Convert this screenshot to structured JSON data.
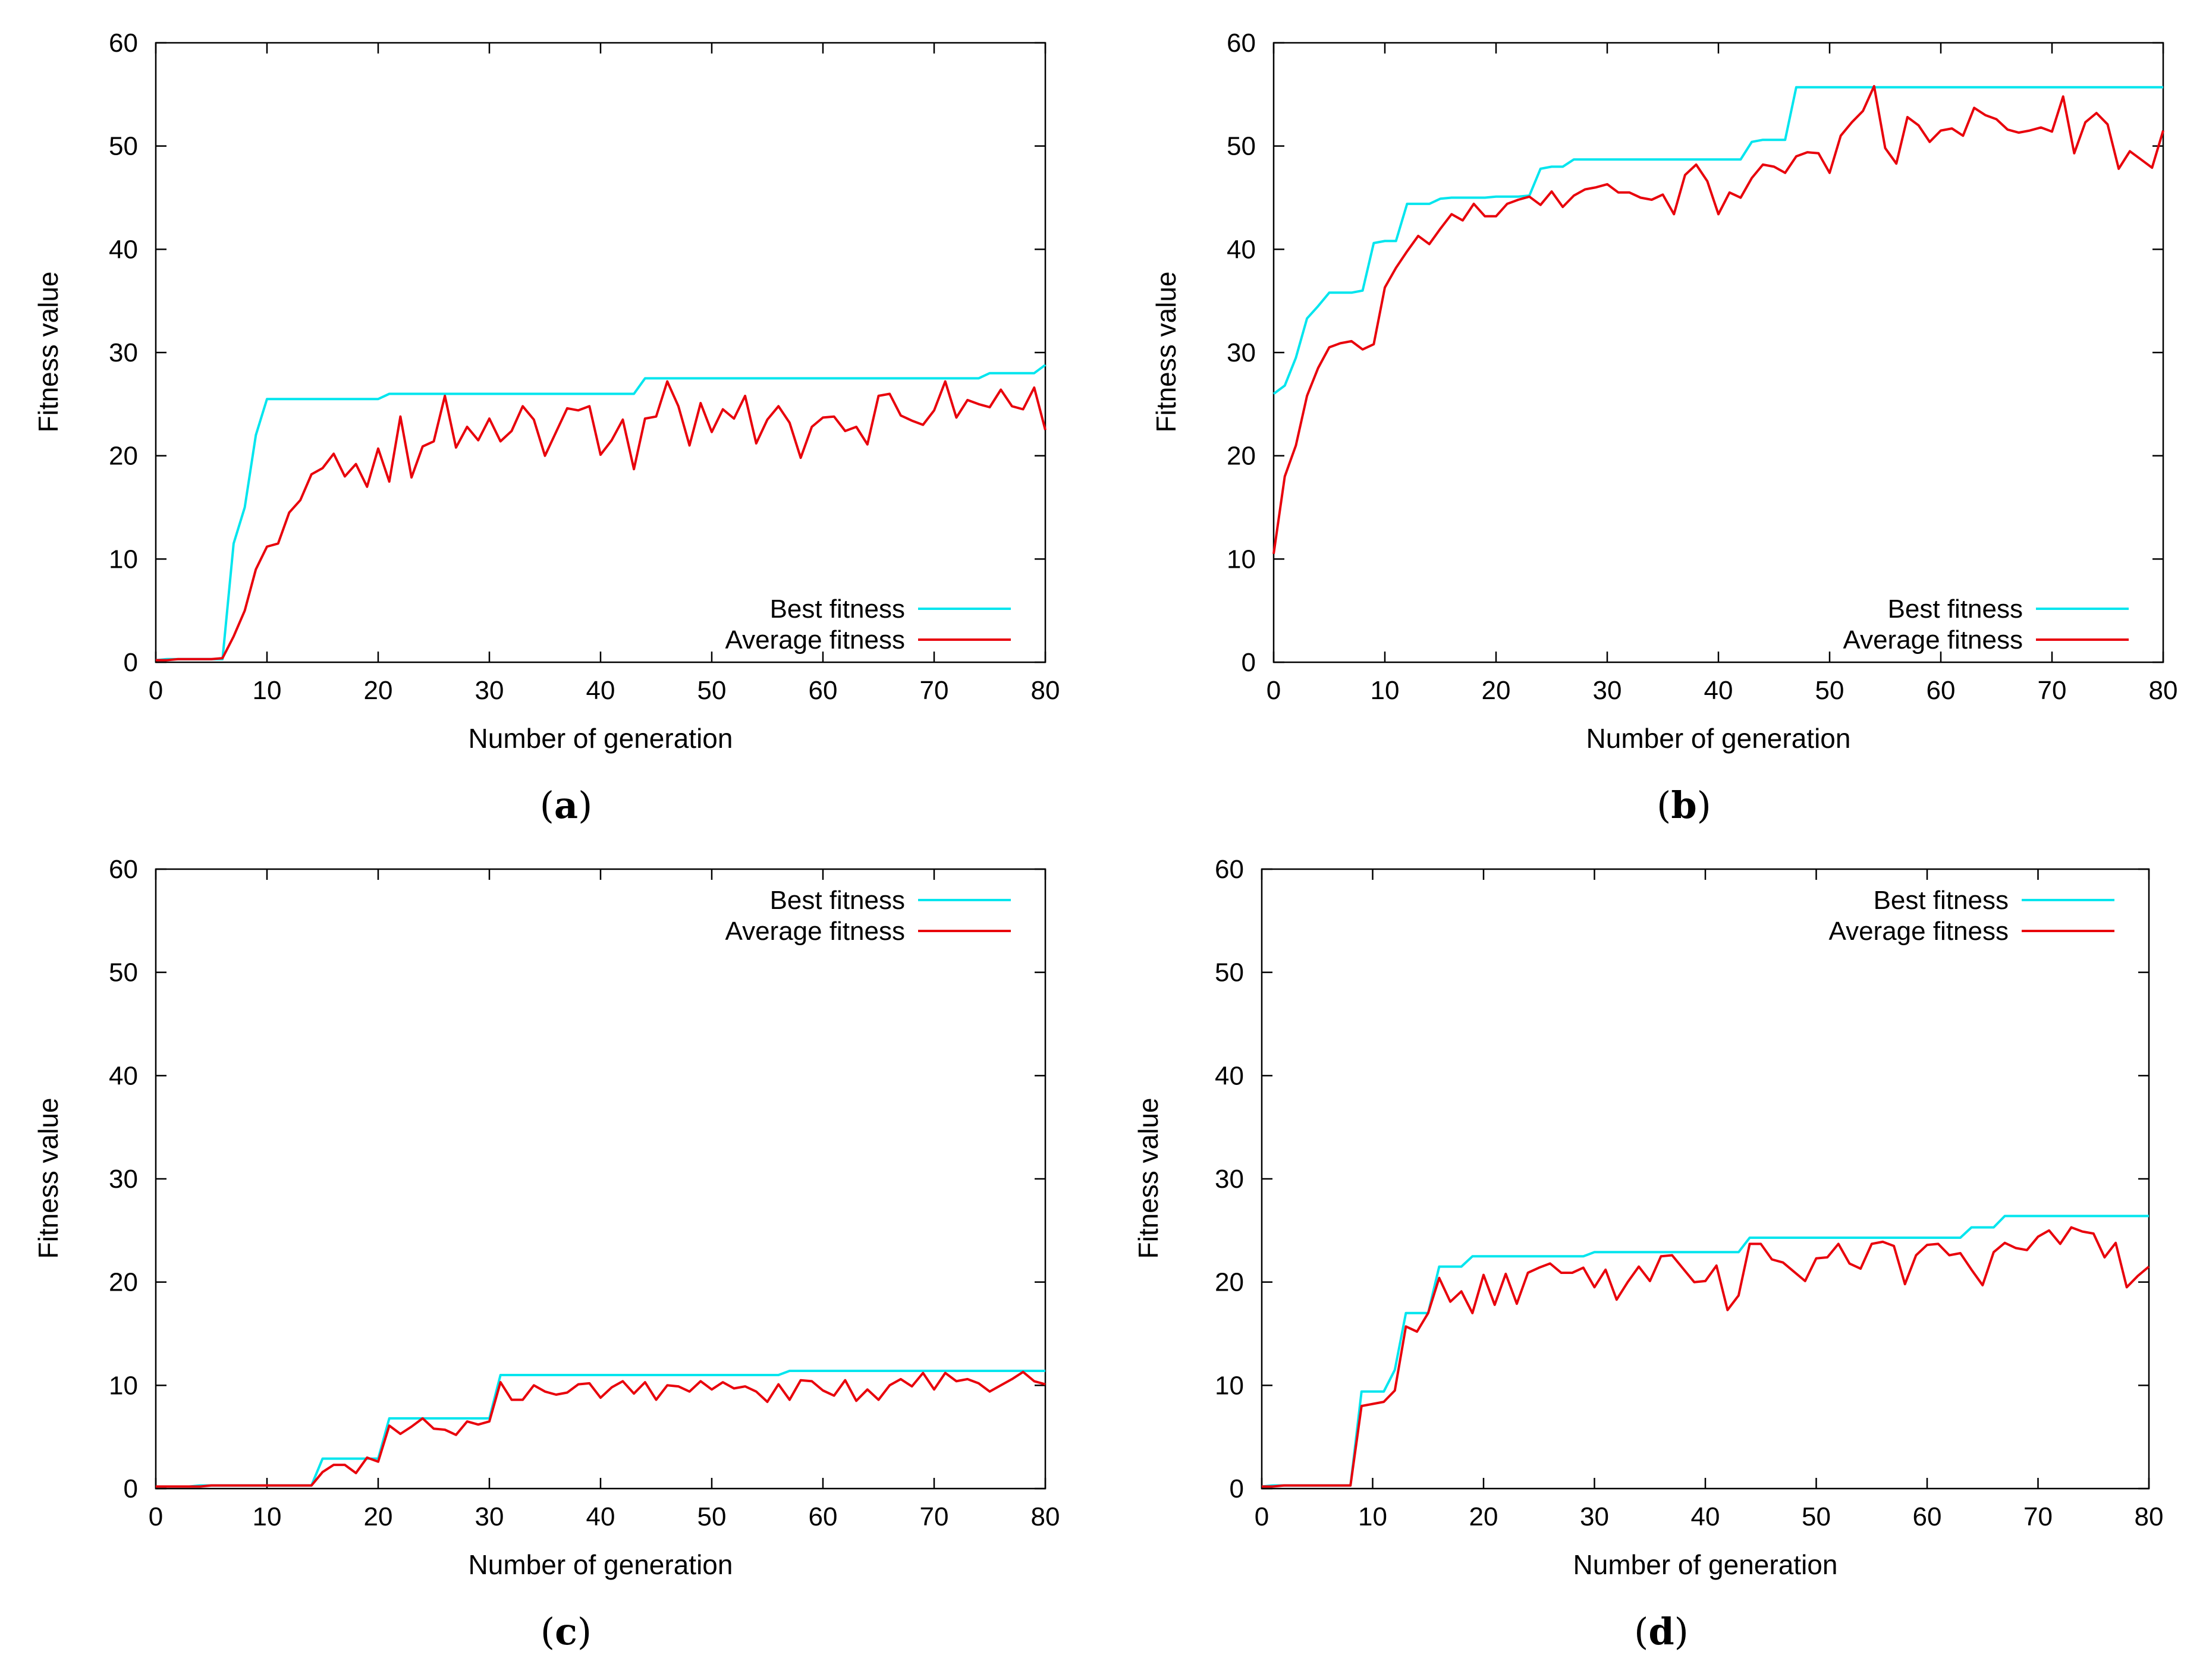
{
  "figure": {
    "panels": [
      {
        "key": "a",
        "label": "(a)",
        "letter": "a"
      },
      {
        "key": "b",
        "label": "(b)",
        "letter": "b"
      },
      {
        "key": "c",
        "label": "(c)",
        "letter": "c"
      },
      {
        "key": "d",
        "label": "(d)",
        "letter": "d"
      }
    ]
  },
  "chart_data": [
    {
      "type": "line",
      "panel": "a",
      "caption": "(a)",
      "title": "",
      "xlabel": "Number of generation",
      "ylabel": "Fitness value",
      "xlim": [
        0,
        80
      ],
      "ylim": [
        0,
        60
      ],
      "xticks": [
        0,
        10,
        20,
        30,
        40,
        50,
        60,
        70,
        80
      ],
      "yticks": [
        0,
        10,
        20,
        30,
        40,
        50,
        60
      ],
      "legend_position": "bottom-right",
      "colors": {
        "best": "#00e5ee",
        "average": "#e8000b"
      },
      "series": [
        {
          "name": "Best fitness",
          "values": [
            0.2,
            0.3,
            0.3,
            0.3,
            0.3,
            0.3,
            0.3,
            11.5,
            15,
            22,
            25.5,
            25.5,
            25.5,
            25.5,
            25.5,
            25.5,
            25.5,
            25.5,
            25.5,
            25.5,
            25.5,
            26,
            26,
            26,
            26,
            26,
            26,
            26,
            26,
            26,
            26,
            26,
            26,
            26,
            26,
            26,
            26,
            26,
            26,
            26,
            26,
            26,
            26,
            26,
            27.5,
            27.5,
            27.5,
            27.5,
            27.5,
            27.5,
            27.5,
            27.5,
            27.5,
            27.5,
            27.5,
            27.5,
            27.5,
            27.5,
            27.5,
            27.5,
            27.5,
            27.5,
            27.5,
            27.5,
            27.5,
            27.5,
            27.5,
            27.5,
            27.5,
            27.5,
            27.5,
            27.5,
            27.5,
            27.5,
            27.5,
            28,
            28,
            28,
            28,
            28,
            28.8
          ]
        },
        {
          "name": "Average fitness",
          "values": [
            0.2,
            0.2,
            0.3,
            0.3,
            0.3,
            0.3,
            0.4,
            2.5,
            5,
            9,
            11.2,
            11.5,
            14.5,
            15.7,
            18.2,
            18.8,
            20.2,
            18,
            19.2,
            17,
            20.7,
            17.5,
            23.8,
            17.9,
            20.9,
            21.4,
            25.8,
            20.8,
            22.8,
            21.5,
            23.6,
            21.4,
            22.4,
            24.8,
            23.5,
            20,
            22.3,
            24.6,
            24.4,
            24.8,
            20.1,
            21.5,
            23.5,
            18.7,
            23.6,
            23.8,
            27.2,
            24.8,
            21,
            25.1,
            22.3,
            24.5,
            23.6,
            25.8,
            21.2,
            23.5,
            24.8,
            23.2,
            19.8,
            22.8,
            23.7,
            23.8,
            22.4,
            22.8,
            21.1,
            25.8,
            26,
            23.9,
            23.4,
            23,
            24.4,
            27.2,
            23.7,
            25.4,
            25,
            24.7,
            26.4,
            24.8,
            24.5,
            26.6,
            22.5
          ]
        }
      ]
    },
    {
      "type": "line",
      "panel": "b",
      "caption": "(b)",
      "title": "",
      "xlabel": "Number of generation",
      "ylabel": "Fitness value",
      "xlim": [
        0,
        80
      ],
      "ylim": [
        0,
        60
      ],
      "xticks": [
        0,
        10,
        20,
        30,
        40,
        50,
        60,
        70,
        80
      ],
      "yticks": [
        0,
        10,
        20,
        30,
        40,
        50,
        60
      ],
      "legend_position": "bottom-right",
      "colors": {
        "best": "#00e5ee",
        "average": "#e8000b"
      },
      "series": [
        {
          "name": "Best fitness",
          "values": [
            26,
            26.8,
            29.5,
            33.3,
            34.5,
            35.8,
            35.8,
            35.8,
            36,
            40.6,
            40.8,
            40.8,
            44.4,
            44.4,
            44.4,
            44.9,
            45,
            45,
            45,
            45,
            45.1,
            45.1,
            45.1,
            45.2,
            47.8,
            48,
            48,
            48.7,
            48.7,
            48.7,
            48.7,
            48.7,
            48.7,
            48.7,
            48.7,
            48.7,
            48.7,
            48.7,
            48.7,
            48.7,
            48.7,
            48.7,
            48.7,
            50.4,
            50.6,
            50.6,
            50.6,
            55.7,
            55.7,
            55.7,
            55.7,
            55.7,
            55.7,
            55.7,
            55.7,
            55.7,
            55.7,
            55.7,
            55.7,
            55.7,
            55.7,
            55.7,
            55.7,
            55.7,
            55.7,
            55.7,
            55.7,
            55.7,
            55.7,
            55.7,
            55.7,
            55.7,
            55.7,
            55.7,
            55.7,
            55.7,
            55.7,
            55.7,
            55.7,
            55.7,
            55.7
          ]
        },
        {
          "name": "Average fitness",
          "values": [
            10.5,
            18,
            21,
            25.8,
            28.5,
            30.5,
            30.9,
            31.1,
            30.3,
            30.8,
            36.3,
            38.2,
            39.8,
            41.3,
            40.5,
            42,
            43.4,
            42.8,
            44.4,
            43.2,
            43.2,
            44.4,
            44.8,
            45.1,
            44.3,
            45.6,
            44.1,
            45.2,
            45.8,
            46,
            46.3,
            45.5,
            45.5,
            45,
            44.8,
            45.3,
            43.4,
            47.2,
            48.2,
            46.6,
            43.4,
            45.5,
            45,
            46.9,
            48.2,
            48,
            47.4,
            49,
            49.4,
            49.3,
            47.4,
            51,
            52.3,
            53.4,
            55.8,
            49.8,
            48.3,
            52.8,
            52,
            50.4,
            51.5,
            51.7,
            51,
            53.7,
            53,
            52.6,
            51.6,
            51.3,
            51.5,
            51.8,
            51.4,
            54.8,
            49.3,
            52.3,
            53.2,
            52.1,
            47.8,
            49.5,
            48.7,
            47.9,
            51.5
          ]
        }
      ]
    },
    {
      "type": "line",
      "panel": "c",
      "caption": "(c)",
      "title": "",
      "xlabel": "Number of generation",
      "ylabel": "Fitness value",
      "xlim": [
        0,
        80
      ],
      "ylim": [
        0,
        60
      ],
      "xticks": [
        0,
        10,
        20,
        30,
        40,
        50,
        60,
        70,
        80
      ],
      "yticks": [
        0,
        10,
        20,
        30,
        40,
        50,
        60
      ],
      "legend_position": "top-right",
      "colors": {
        "best": "#00e5ee",
        "average": "#e8000b"
      },
      "series": [
        {
          "name": "Best fitness",
          "values": [
            0.2,
            0.2,
            0.2,
            0.2,
            0.3,
            0.3,
            0.3,
            0.3,
            0.3,
            0.3,
            0.3,
            0.3,
            0.3,
            0.3,
            0.3,
            2.9,
            2.9,
            2.9,
            2.9,
            2.9,
            2.9,
            6.8,
            6.8,
            6.8,
            6.8,
            6.8,
            6.8,
            6.8,
            6.8,
            6.8,
            6.8,
            11,
            11,
            11,
            11,
            11,
            11,
            11,
            11,
            11,
            11,
            11,
            11,
            11,
            11,
            11,
            11,
            11,
            11,
            11,
            11,
            11,
            11,
            11,
            11,
            11,
            11,
            11.4,
            11.4,
            11.4,
            11.4,
            11.4,
            11.4,
            11.4,
            11.4,
            11.4,
            11.4,
            11.4,
            11.4,
            11.4,
            11.4,
            11.4,
            11.4,
            11.4,
            11.4,
            11.4,
            11.4,
            11.4,
            11.4,
            11.4,
            11.4
          ]
        },
        {
          "name": "Average fitness",
          "values": [
            0.2,
            0.2,
            0.2,
            0.2,
            0.2,
            0.3,
            0.3,
            0.3,
            0.3,
            0.3,
            0.3,
            0.3,
            0.3,
            0.3,
            0.3,
            1.6,
            2.3,
            2.3,
            1.5,
            3,
            2.6,
            6.1,
            5.3,
            6,
            6.8,
            5.8,
            5.7,
            5.2,
            6.5,
            6.2,
            6.5,
            10.3,
            8.6,
            8.6,
            10,
            9.4,
            9.1,
            9.3,
            10.1,
            10.2,
            8.8,
            9.8,
            10.4,
            9.2,
            10.3,
            8.6,
            10,
            9.9,
            9.4,
            10.4,
            9.6,
            10.3,
            9.7,
            9.9,
            9.4,
            8.4,
            10.1,
            8.6,
            10.5,
            10.4,
            9.5,
            9,
            10.5,
            8.5,
            9.6,
            8.6,
            10,
            10.6,
            9.9,
            11.2,
            9.6,
            11.2,
            10.4,
            10.6,
            10.2,
            9.4,
            10,
            10.6,
            11.3,
            10.4,
            10.1
          ]
        }
      ]
    },
    {
      "type": "line",
      "panel": "d",
      "caption": "(d)",
      "title": "",
      "xlabel": "Number of generation",
      "ylabel": "Fitness value",
      "xlim": [
        0,
        80
      ],
      "ylim": [
        0,
        60
      ],
      "xticks": [
        0,
        10,
        20,
        30,
        40,
        50,
        60,
        70,
        80
      ],
      "yticks": [
        0,
        10,
        20,
        30,
        40,
        50,
        60
      ],
      "legend_position": "top-right",
      "colors": {
        "best": "#00e5ee",
        "average": "#e8000b"
      },
      "series": [
        {
          "name": "Best fitness",
          "values": [
            0.2,
            0.3,
            0.3,
            0.3,
            0.3,
            0.3,
            0.3,
            0.3,
            0.3,
            9.4,
            9.4,
            9.4,
            11.5,
            17,
            17,
            17,
            21.5,
            21.5,
            21.5,
            22.5,
            22.5,
            22.5,
            22.5,
            22.5,
            22.5,
            22.5,
            22.5,
            22.5,
            22.5,
            22.5,
            22.9,
            22.9,
            22.9,
            22.9,
            22.9,
            22.9,
            22.9,
            22.9,
            22.9,
            22.9,
            22.9,
            22.9,
            22.9,
            22.9,
            24.3,
            24.3,
            24.3,
            24.3,
            24.3,
            24.3,
            24.3,
            24.3,
            24.3,
            24.3,
            24.3,
            24.3,
            24.3,
            24.3,
            24.3,
            24.3,
            24.3,
            24.3,
            24.3,
            24.3,
            25.3,
            25.3,
            25.3,
            26.4,
            26.4,
            26.4,
            26.4,
            26.4,
            26.4,
            26.4,
            26.4,
            26.4,
            26.4,
            26.4,
            26.4,
            26.4,
            26.4
          ]
        },
        {
          "name": "Average fitness",
          "values": [
            0.2,
            0.2,
            0.3,
            0.3,
            0.3,
            0.3,
            0.3,
            0.3,
            0.3,
            8,
            8.2,
            8.4,
            9.5,
            15.7,
            15.2,
            17,
            20.4,
            18.1,
            19.1,
            17,
            20.7,
            17.8,
            20.8,
            17.9,
            20.9,
            21.4,
            21.8,
            20.9,
            20.9,
            21.4,
            19.5,
            21.2,
            18.3,
            20,
            21.5,
            20.1,
            22.5,
            22.6,
            21.3,
            20,
            20.1,
            21.6,
            17.3,
            18.7,
            23.7,
            23.7,
            22.2,
            21.9,
            21,
            20.1,
            22.3,
            22.4,
            23.7,
            21.8,
            21.3,
            23.7,
            23.9,
            23.5,
            19.8,
            22.6,
            23.6,
            23.7,
            22.6,
            22.8,
            21.2,
            19.7,
            22.9,
            23.8,
            23.3,
            23.1,
            24.4,
            25,
            23.7,
            25.3,
            24.9,
            24.7,
            22.4,
            23.8,
            19.5,
            20.6,
            21.5
          ]
        }
      ]
    }
  ]
}
